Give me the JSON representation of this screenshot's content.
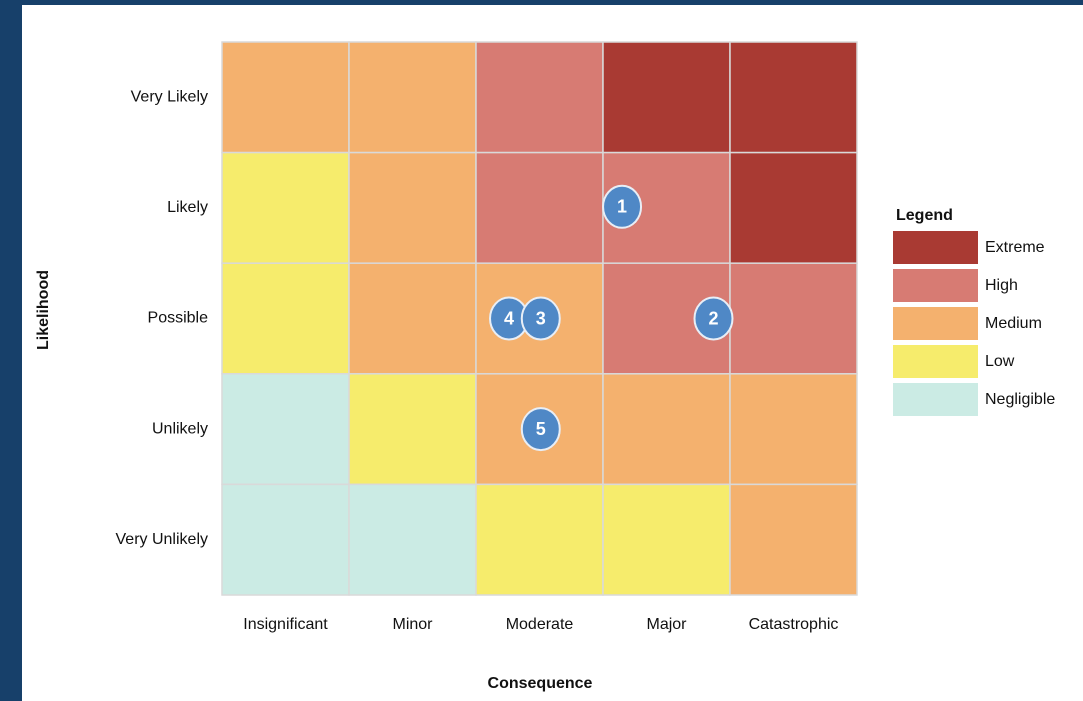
{
  "chart_data": {
    "type": "risk-matrix",
    "x_label": "Consequence",
    "y_label": "Likelihood",
    "x_categories": [
      "Insignificant",
      "Minor",
      "Moderate",
      "Major",
      "Catastrophic"
    ],
    "y_categories": [
      "Very Likely",
      "Likely",
      "Possible",
      "Unlikely",
      "Very Unlikely"
    ],
    "legend_title": "Legend",
    "legend": [
      {
        "name": "Extreme",
        "color": "#a93a33"
      },
      {
        "name": "High",
        "color": "#d77b73"
      },
      {
        "name": "Medium",
        "color": "#f4b16e"
      },
      {
        "name": "Low",
        "color": "#f6ec6c"
      },
      {
        "name": "Negligible",
        "color": "#cbebe4"
      }
    ],
    "cells": [
      [
        2,
        2,
        1,
        0,
        0
      ],
      [
        3,
        2,
        1,
        1,
        0
      ],
      [
        3,
        2,
        2,
        1,
        1
      ],
      [
        4,
        3,
        2,
        2,
        2
      ],
      [
        4,
        4,
        3,
        3,
        2
      ]
    ],
    "xlim": [
      0,
      5
    ],
    "ylim": [
      0,
      5
    ],
    "marker_color": "#4f88c6",
    "markers": [
      {
        "label": "1",
        "x": 3.15,
        "y": 3.51
      },
      {
        "label": "2",
        "x": 3.87,
        "y": 2.5
      },
      {
        "label": "4",
        "x": 2.26,
        "y": 2.5
      },
      {
        "label": "3",
        "x": 2.51,
        "y": 2.5
      },
      {
        "label": "5",
        "x": 2.51,
        "y": 1.5
      }
    ]
  }
}
